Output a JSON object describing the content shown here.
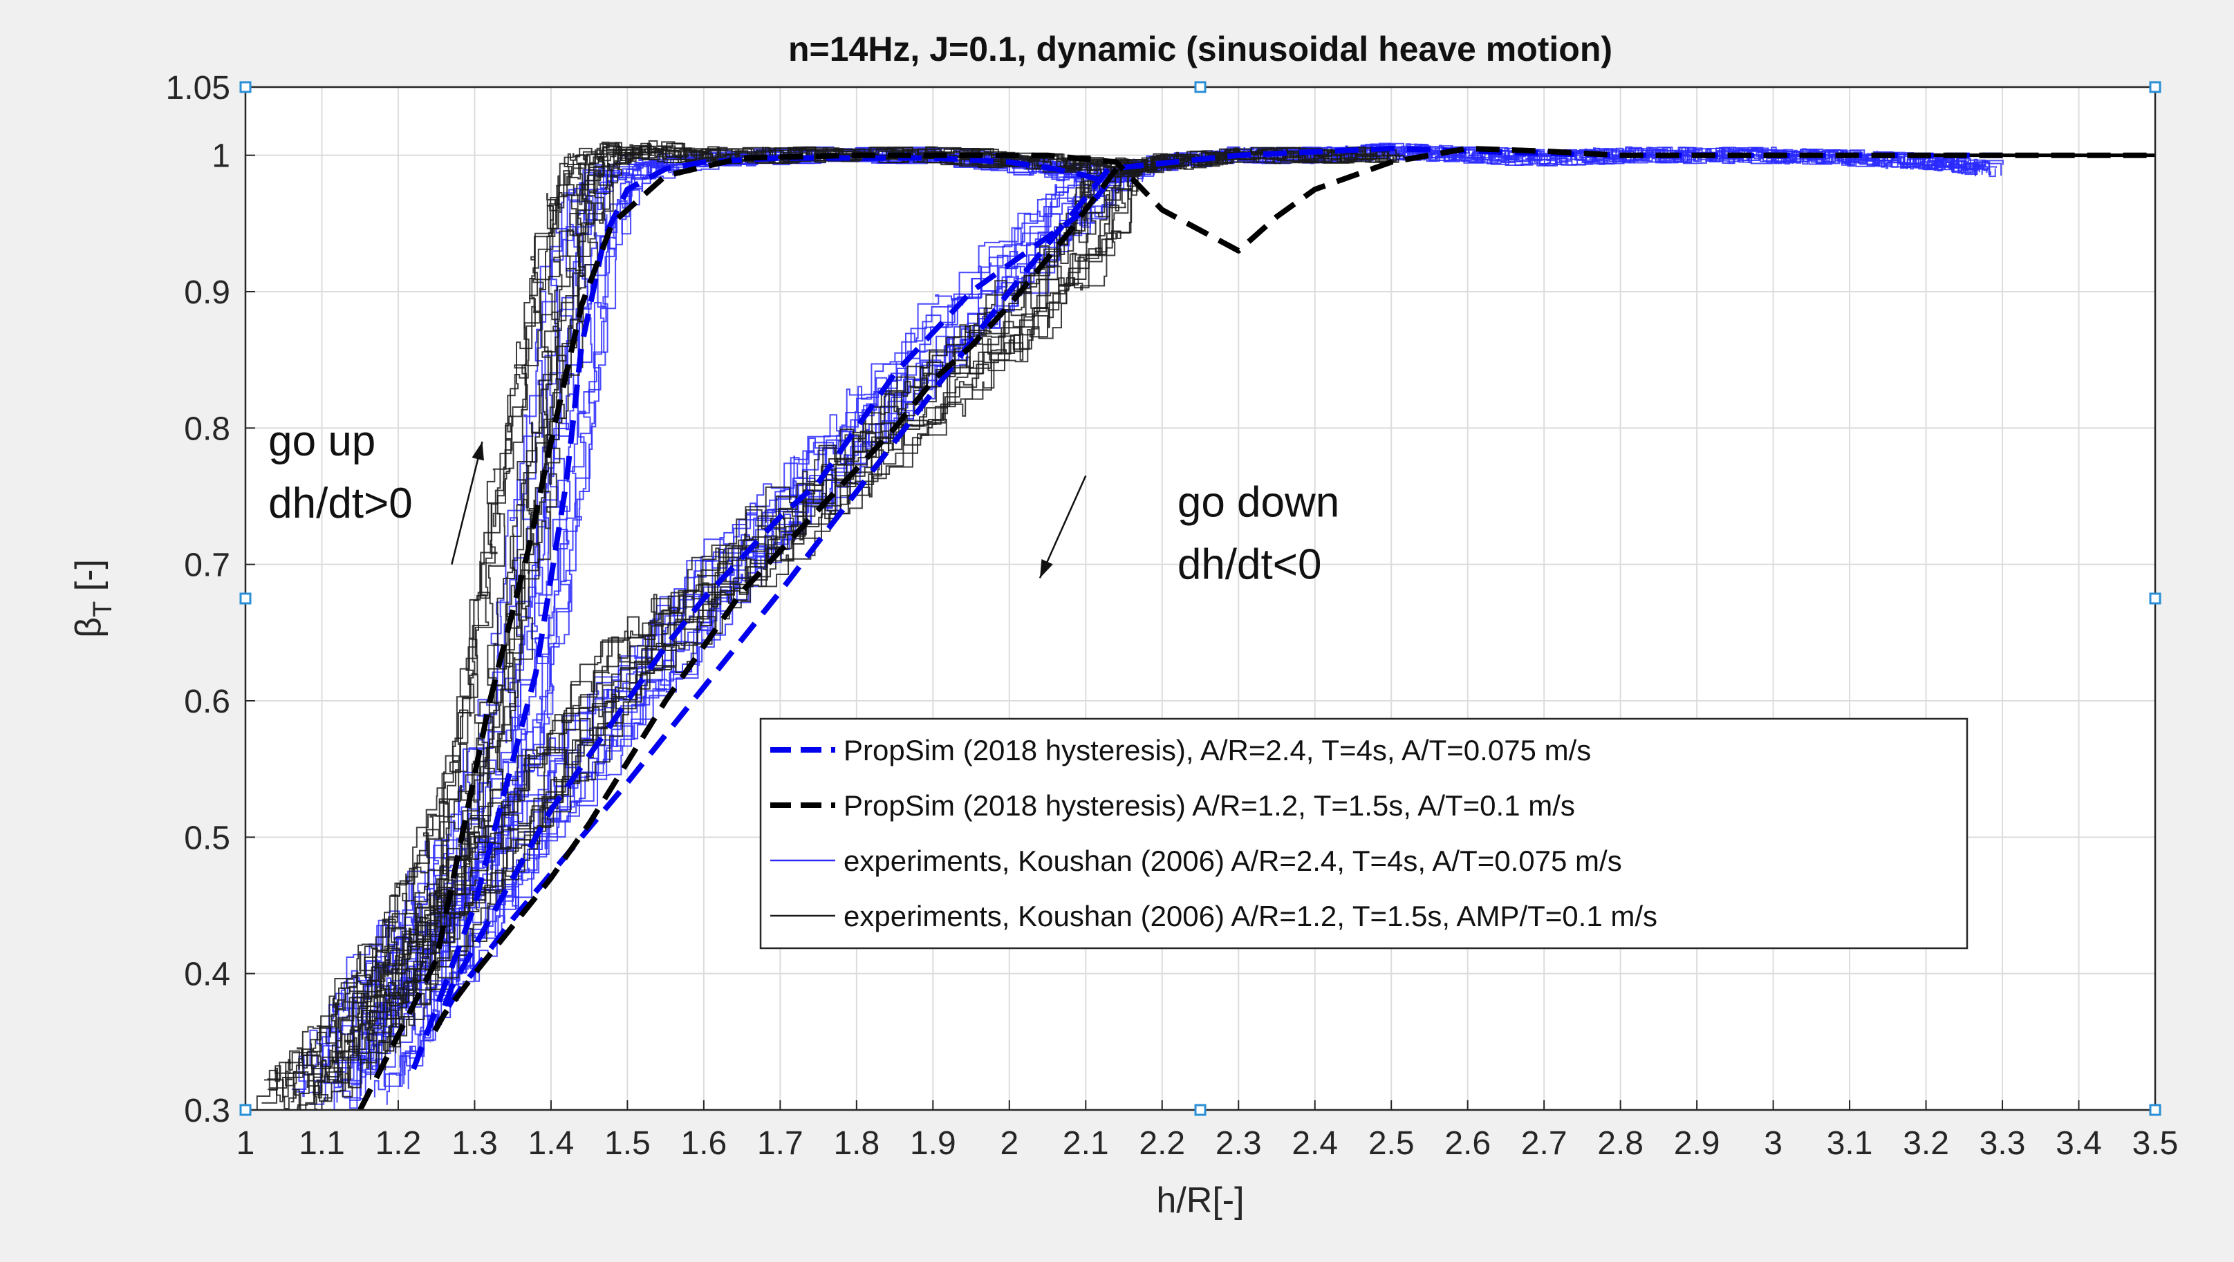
{
  "chart_data": {
    "type": "line",
    "title": "n=14Hz, J=0.1, dynamic (sinusoidal heave motion)",
    "xlabel": "h/R[-]",
    "ylabel": "β",
    "ylabel_sub": "T",
    "ylabel_suffix": " [-]",
    "xlim": [
      1,
      3.5
    ],
    "ylim": [
      0.3,
      1.05
    ],
    "grid": true,
    "x_ticks": [
      1,
      1.1,
      1.2,
      1.3,
      1.4,
      1.5,
      1.6,
      1.7,
      1.8,
      1.9,
      2,
      2.1,
      2.2,
      2.3,
      2.4,
      2.5,
      2.6,
      2.7,
      2.8,
      2.9,
      3,
      3.1,
      3.2,
      3.3,
      3.4,
      3.5
    ],
    "x_tick_labels": [
      "1",
      "1.1",
      "1.2",
      "1.3",
      "1.4",
      "1.5",
      "1.6",
      "1.7",
      "1.8",
      "1.9",
      "2",
      "2.1",
      "2.2",
      "2.3",
      "2.4",
      "2.5",
      "2.6",
      "2.7",
      "2.8",
      "2.9",
      "3",
      "3.1",
      "3.2",
      "3.3",
      "3.4",
      "3.5"
    ],
    "y_ticks": [
      0.3,
      0.4,
      0.5,
      0.6,
      0.7,
      0.8,
      0.9,
      1,
      1.05
    ],
    "y_tick_labels": [
      "0.3",
      "0.4",
      "0.5",
      "0.6",
      "0.7",
      "0.8",
      "0.9",
      "1",
      "1.05"
    ],
    "legend_position": "center-right",
    "series": [
      {
        "name": "PropSim (2018 hysteresis),  A/R=2.4, T=4s, A/T=0.075 m/s",
        "style": "dashed",
        "color": "#0000ee",
        "weight": "thick",
        "x": [
          1.22,
          1.3,
          1.38,
          1.42,
          1.44,
          1.47,
          1.5,
          1.55,
          1.6,
          1.7,
          1.8,
          1.9,
          2.0,
          2.06,
          2.1,
          2.13,
          2.1,
          2.05,
          2.0,
          1.95,
          1.9,
          1.85,
          1.8,
          1.75,
          1.7,
          1.65,
          1.6,
          1.55,
          1.5,
          1.45,
          1.4,
          1.35,
          1.31,
          1.27,
          1.25,
          1.27,
          1.35,
          1.5,
          1.7,
          2.0,
          2.13,
          2.3,
          2.5,
          2.6,
          2.8,
          3.0,
          3.2,
          3.3
        ],
        "y": [
          0.33,
          0.45,
          0.62,
          0.76,
          0.86,
          0.94,
          0.975,
          0.99,
          0.995,
          0.998,
          0.998,
          0.998,
          0.995,
          0.99,
          0.985,
          0.98,
          0.96,
          0.94,
          0.92,
          0.9,
          0.87,
          0.84,
          0.8,
          0.76,
          0.735,
          0.705,
          0.675,
          0.64,
          0.6,
          0.56,
          0.52,
          0.47,
          0.43,
          0.39,
          0.36,
          0.38,
          0.44,
          0.54,
          0.68,
          0.9,
          0.99,
          1.0,
          1.005,
          1.003,
          1.0,
          1.0,
          1.0,
          1.0
        ]
      },
      {
        "name": "PropSim (2018 hysteresis) A/R=1.2, T=1.5s, A/T=0.1 m/s",
        "style": "dashed",
        "color": "#000000",
        "weight": "thick",
        "x": [
          1.15,
          1.25,
          1.32,
          1.37,
          1.4,
          1.44,
          1.48,
          1.55,
          1.65,
          1.8,
          1.95,
          2.05,
          2.14,
          2.2,
          2.3,
          2.35,
          2.4,
          2.5,
          2.6,
          2.7,
          2.8,
          3.0,
          3.3,
          3.5
        ],
        "y": [
          0.3,
          0.41,
          0.6,
          0.71,
          0.79,
          0.89,
          0.95,
          0.985,
          0.998,
          1.0,
          1.0,
          1.0,
          0.995,
          0.96,
          0.93,
          0.955,
          0.975,
          0.995,
          1.005,
          1.003,
          1.0,
          1.0,
          1.0,
          1.0
        ]
      },
      {
        "name": "PropSim (2018 hysteresis) A/R=1.2, T=1.5s, A/T=0.1 m/s",
        "style": "dashed",
        "color": "#000000",
        "weight": "thick",
        "x": [
          2.14,
          2.08,
          2.0,
          1.95,
          1.9,
          1.85,
          1.8,
          1.75,
          1.7,
          1.65,
          1.6,
          1.55,
          1.5,
          1.45,
          1.4,
          1.35,
          1.3,
          1.26,
          1.24
        ],
        "y": [
          0.99,
          0.945,
          0.89,
          0.86,
          0.835,
          0.8,
          0.77,
          0.74,
          0.71,
          0.68,
          0.64,
          0.6,
          0.555,
          0.51,
          0.47,
          0.435,
          0.4,
          0.37,
          0.35
        ]
      }
    ],
    "experiment_series": [
      {
        "name": "experiments, Koushan (2006) A/R=2.4, T=4s, A/T=0.075 m/s",
        "color": "#2a2aff",
        "runs": 14,
        "step": 0.012,
        "up_x": [
          1.1,
          1.15,
          1.2,
          1.25,
          1.3,
          1.35,
          1.38,
          1.41,
          1.44,
          1.48,
          1.55,
          1.7,
          1.9,
          2.05,
          2.13
        ],
        "up_y": [
          0.31,
          0.37,
          0.41,
          0.45,
          0.5,
          0.58,
          0.68,
          0.8,
          0.93,
          0.985,
          0.995,
          1.0,
          1.0,
          0.99,
          0.985
        ],
        "down_x": [
          2.13,
          2.05,
          1.95,
          1.85,
          1.75,
          1.65,
          1.55,
          1.45,
          1.35,
          1.28,
          1.22,
          1.17
        ],
        "down_y": [
          0.985,
          0.94,
          0.88,
          0.82,
          0.76,
          0.7,
          0.63,
          0.56,
          0.48,
          0.42,
          0.37,
          0.32
        ],
        "tail_x": [
          2.13,
          2.2,
          2.3,
          2.4,
          2.5,
          2.6,
          2.7,
          2.8,
          2.9,
          3.0,
          3.1,
          3.2,
          3.28
        ],
        "tail_y": [
          0.985,
          0.995,
          1.0,
          1.0,
          1.003,
          1.0,
          0.998,
          1.0,
          1.0,
          1.0,
          0.998,
          0.995,
          0.99
        ]
      },
      {
        "name": "experiments, Koushan (2006) A/R=1.2, T=1.5s, AMP/T=0.1 m/s",
        "color": "#1a1a1a",
        "runs": 14,
        "step": 0.012,
        "up_x": [
          1.05,
          1.1,
          1.15,
          1.2,
          1.25,
          1.3,
          1.33,
          1.36,
          1.39,
          1.42,
          1.45,
          1.5,
          1.6,
          1.75,
          1.9,
          2.05,
          2.14
        ],
        "up_y": [
          0.31,
          0.33,
          0.38,
          0.42,
          0.48,
          0.56,
          0.66,
          0.76,
          0.86,
          0.95,
          0.995,
          1.005,
          1.0,
          1.0,
          1.0,
          0.995,
          0.99
        ],
        "down_x": [
          2.14,
          2.1,
          2.0,
          1.9,
          1.8,
          1.7,
          1.6,
          1.5,
          1.4,
          1.3,
          1.22,
          1.15
        ],
        "down_y": [
          0.99,
          0.93,
          0.87,
          0.82,
          0.77,
          0.72,
          0.67,
          0.62,
          0.54,
          0.46,
          0.4,
          0.34
        ],
        "tail_x": [
          2.14,
          2.2,
          2.3,
          2.5
        ],
        "tail_y": [
          0.99,
          0.995,
          1.0,
          1.0
        ]
      }
    ],
    "annotations": [
      {
        "lines": [
          "go up",
          "dh/dt>0"
        ],
        "x": 1.03,
        "y": 0.78,
        "arrow_from": [
          1.27,
          0.7
        ],
        "arrow_to": [
          1.31,
          0.79
        ]
      },
      {
        "lines": [
          "go down",
          "dh/dt<0"
        ],
        "x": 2.22,
        "y": 0.735,
        "arrow_from": [
          2.1,
          0.765
        ],
        "arrow_to": [
          2.04,
          0.69
        ]
      }
    ],
    "legend_entries": [
      {
        "label": "PropSim (2018 hysteresis),  A/R=2.4, T=4s, A/T=0.075 m/s",
        "color": "#0000ee",
        "style": "dashed"
      },
      {
        "label": "PropSim (2018 hysteresis) A/R=1.2, T=1.5s, A/T=0.1 m/s",
        "color": "#000000",
        "style": "dashed"
      },
      {
        "label": "experiments, Koushan (2006) A/R=2.4, T=4s, A/T=0.075 m/s",
        "color": "#2a2aff",
        "style": "solid"
      },
      {
        "label": "experiments, Koushan (2006) A/R=1.2, T=1.5s, AMP/T=0.1 m/s",
        "color": "#1a1a1a",
        "style": "solid"
      }
    ]
  }
}
